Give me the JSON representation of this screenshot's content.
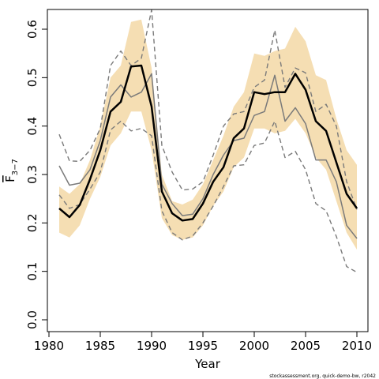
{
  "chart_data": {
    "type": "line",
    "title": "",
    "xlabel": "Year",
    "ylabel_base": "F",
    "ylabel_sub": "3−7",
    "xlim": [
      1980,
      2010
    ],
    "ylim": [
      0,
      0.6
    ],
    "xticks": [
      1980,
      1985,
      1990,
      1995,
      2000,
      2005,
      2010
    ],
    "yticks": [
      0.0,
      0.1,
      0.2,
      0.3,
      0.4,
      0.5,
      0.6
    ],
    "grid": false,
    "legend": "none",
    "x": [
      1981,
      1982,
      1983,
      1984,
      1985,
      1986,
      1987,
      1988,
      1989,
      1990,
      1991,
      1992,
      1993,
      1994,
      1995,
      1996,
      1997,
      1998,
      1999,
      2000,
      2001,
      2002,
      2003,
      2004,
      2005,
      2006,
      2007,
      2008,
      2009,
      2010
    ],
    "band": {
      "color": "#f5deb3",
      "upper": [
        0.275,
        0.26,
        0.28,
        0.33,
        0.4,
        0.5,
        0.525,
        0.615,
        0.62,
        0.52,
        0.3,
        0.245,
        0.238,
        0.248,
        0.28,
        0.33,
        0.38,
        0.44,
        0.47,
        0.55,
        0.545,
        0.555,
        0.56,
        0.605,
        0.575,
        0.505,
        0.495,
        0.415,
        0.35,
        0.32
      ],
      "lower": [
        0.18,
        0.17,
        0.195,
        0.25,
        0.295,
        0.36,
        0.385,
        0.43,
        0.43,
        0.35,
        0.21,
        0.175,
        0.165,
        0.17,
        0.195,
        0.235,
        0.265,
        0.315,
        0.335,
        0.395,
        0.395,
        0.385,
        0.39,
        0.415,
        0.385,
        0.335,
        0.31,
        0.245,
        0.18,
        0.145
      ]
    },
    "series": [
      {
        "style": "solid-thick",
        "color": "#000000",
        "values": [
          0.23,
          0.212,
          0.237,
          0.29,
          0.35,
          0.43,
          0.45,
          0.523,
          0.525,
          0.44,
          0.265,
          0.22,
          0.205,
          0.208,
          0.24,
          0.285,
          0.315,
          0.375,
          0.395,
          0.47,
          0.466,
          0.47,
          0.47,
          0.508,
          0.475,
          0.41,
          0.39,
          0.325,
          0.26,
          0.23
        ]
      },
      {
        "style": "solid-thin",
        "color": "#7a7a7a",
        "values": [
          0.318,
          0.278,
          0.282,
          0.31,
          0.37,
          0.46,
          0.485,
          0.46,
          0.47,
          0.508,
          0.28,
          0.24,
          0.215,
          0.218,
          0.25,
          0.3,
          0.34,
          0.37,
          0.375,
          0.422,
          0.43,
          0.505,
          0.41,
          0.438,
          0.405,
          0.33,
          0.33,
          0.285,
          0.195,
          0.168
        ]
      },
      {
        "style": "dashed",
        "color": "#7a7a7a",
        "values": [
          0.383,
          0.328,
          0.327,
          0.35,
          0.395,
          0.525,
          0.555,
          0.525,
          0.54,
          0.64,
          0.36,
          0.305,
          0.268,
          0.27,
          0.285,
          0.34,
          0.4,
          0.425,
          0.43,
          0.48,
          0.495,
          0.598,
          0.48,
          0.52,
          0.51,
          0.43,
          0.445,
          0.4,
          0.285,
          0.228
        ]
      },
      {
        "style": "dashed",
        "color": "#7a7a7a",
        "values": [
          0.258,
          0.23,
          0.238,
          0.27,
          0.305,
          0.392,
          0.41,
          0.39,
          0.395,
          0.38,
          0.225,
          0.18,
          0.165,
          0.173,
          0.2,
          0.235,
          0.275,
          0.318,
          0.32,
          0.36,
          0.365,
          0.41,
          0.335,
          0.348,
          0.31,
          0.24,
          0.225,
          0.172,
          0.11,
          0.098
        ]
      }
    ]
  },
  "footer": "stockassessment.org, quick-demo-bw, r2042"
}
